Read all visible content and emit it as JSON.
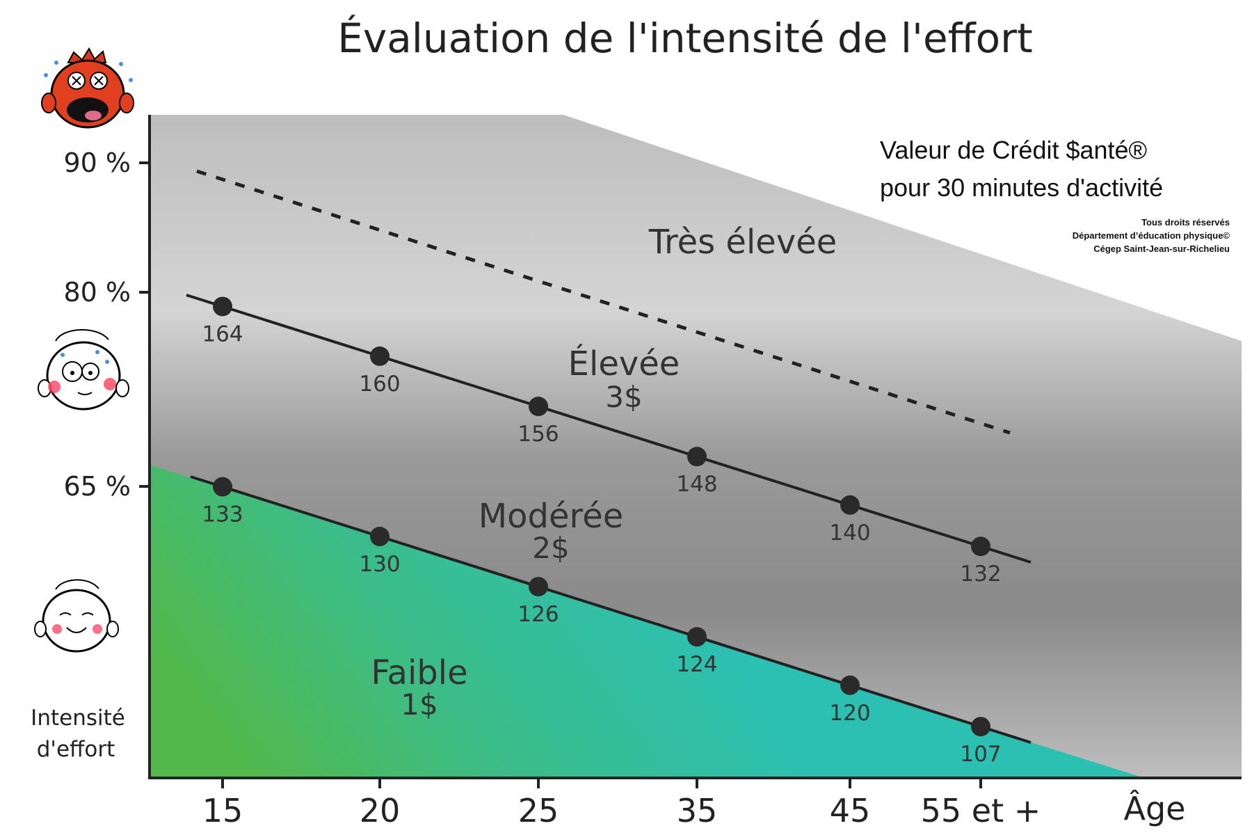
{
  "title": "Évaluation de l'intensité de l'effort",
  "credit": {
    "line1": "Valeur de Crédit $anté®",
    "line2": "pour 30 minutes d'activité"
  },
  "copyright": {
    "line1": "Tous droits réservés",
    "line2": "Département d’éducation physique©",
    "line3": "Cégep Saint-Jean-sur-Richelieu"
  },
  "y_axis_title": {
    "line1": "Intensité",
    "line2": "d'effort"
  },
  "zones": {
    "tres_elevee": {
      "name": "Très élevée"
    },
    "elevee": {
      "name": "Élevée",
      "value": "3$"
    },
    "moderee": {
      "name": "Modérée",
      "value": "2$"
    },
    "faible": {
      "name": "Faible",
      "value": "1$"
    }
  },
  "icons": [
    "exhausted-face-icon",
    "sweating-face-icon",
    "calm-face-icon"
  ],
  "colors": {
    "grey_zone": "#c9c9c9",
    "dark_grey_band": "#8e8e8e",
    "green": "#4db84f",
    "teal": "#2dbfb0",
    "line": "#222222"
  },
  "chart_data": {
    "type": "line",
    "title": "Évaluation de l'intensité de l'effort",
    "xlabel": "Âge",
    "ylabel": "Intensité d'effort",
    "categories": [
      "15",
      "20",
      "25",
      "35",
      "45",
      "55 et +"
    ],
    "y_ticks": [
      "90 %",
      "80 %",
      "65 %"
    ],
    "y_tick_values": [
      90,
      80,
      65
    ],
    "series": [
      {
        "values": [
          164,
          160,
          156,
          148,
          140,
          132
        ]
      },
      {
        "values": [
          133,
          130,
          126,
          124,
          120,
          107
        ]
      }
    ],
    "zones": [
      "Faible",
      "Modérée",
      "Élevée",
      "Très élevée"
    ],
    "grid": false
  }
}
